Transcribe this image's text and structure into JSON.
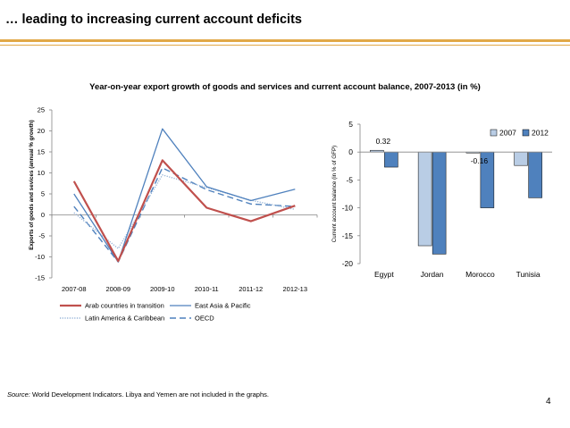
{
  "slide": {
    "title": "… leading to increasing current account deficits",
    "chart_title": "Year-on-year export growth of goods and  services and current account balance, 2007-2013  (in %)",
    "source_label": "Source:",
    "source_text": " World Development Indicators.  Libya and Yemen are not included in the graphs.",
    "page_number": "4"
  },
  "colors": {
    "accent_rule": "#e1a847",
    "arab": "#c0504d",
    "eastasia": "#4f81bd",
    "latam": "#95b3d7",
    "oecd": "#4f81bd",
    "bar2007": "#b9cde5",
    "bar2012": "#4f81bd"
  },
  "chart_data": [
    {
      "type": "line",
      "ylabel": "Exports of goods and sevices (annual % growth)",
      "categories": [
        "2007-08",
        "2008-09",
        "2009-10",
        "2010-11",
        "2011-12",
        "2012-13"
      ],
      "ylim": [
        -15,
        25
      ],
      "yticks": [
        -15,
        -10,
        -5,
        0,
        5,
        10,
        15,
        20,
        25
      ],
      "grid": false,
      "legend_position": "bottom",
      "series": [
        {
          "name": "Arab countries in transition",
          "values": [
            8,
            -11,
            13,
            1.7,
            -1.5,
            2.2
          ],
          "color": "#c0504d",
          "style": "solid"
        },
        {
          "name": "East Asia & Pacific",
          "values": [
            5,
            -11.2,
            20.5,
            6.7,
            3.4,
            6.1
          ],
          "color": "#4f81bd",
          "style": "solid"
        },
        {
          "name": "Latin America & Caribbean",
          "values": [
            0.5,
            -8,
            9.5,
            6.5,
            3.5,
            1.3
          ],
          "color": "#95b3d7",
          "style": "dotted"
        },
        {
          "name": "OECD",
          "values": [
            2,
            -11.2,
            11.2,
            6,
            2.6,
            2
          ],
          "color": "#4f81bd",
          "style": "dashed"
        }
      ]
    },
    {
      "type": "bar",
      "ylabel": "Current account balance (in % of GFP)",
      "categories": [
        "Egypt",
        "Jordan",
        "Morocco",
        "Tunisia"
      ],
      "ylim": [
        -20,
        5
      ],
      "yticks": [
        -20,
        -15,
        -10,
        -5,
        0,
        5
      ],
      "grid": false,
      "legend_position": "top-right",
      "series": [
        {
          "name": "2007",
          "values": [
            0.32,
            -16.8,
            -0.16,
            -2.4
          ],
          "color": "#b9cde5"
        },
        {
          "name": "2012",
          "values": [
            -2.7,
            -18.3,
            -10,
            -8.2
          ],
          "color": "#4f81bd"
        }
      ],
      "data_labels": [
        {
          "category": "Egypt",
          "series": "2007",
          "text": "0.32"
        },
        {
          "category": "Morocco",
          "series": "2007",
          "text": "-0.16"
        }
      ]
    }
  ]
}
